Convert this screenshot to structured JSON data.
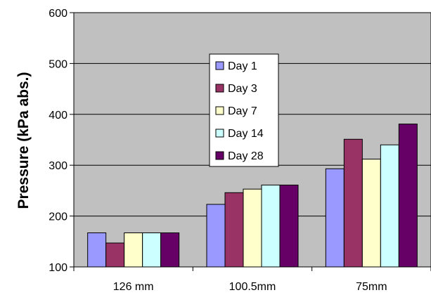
{
  "chart_data": {
    "type": "bar",
    "title": "",
    "xlabel": "",
    "ylabel": "Pressure (kPa abs.)",
    "ylim": [
      100,
      600
    ],
    "yticks": [
      100,
      200,
      300,
      400,
      500,
      600
    ],
    "grid": true,
    "legend_position": "center",
    "plot_background": "#c0c0c0",
    "categories": [
      "126 mm",
      "100.5mm",
      "75mm"
    ],
    "series": [
      {
        "name": "Day 1",
        "color": "#9999ff",
        "values": [
          167,
          223,
          293
        ]
      },
      {
        "name": "Day 3",
        "color": "#993366",
        "values": [
          147,
          246,
          351
        ]
      },
      {
        "name": "Day 7",
        "color": "#ffffcc",
        "values": [
          167,
          253,
          312
        ]
      },
      {
        "name": "Day 14",
        "color": "#ccffff",
        "values": [
          167,
          261,
          340
        ]
      },
      {
        "name": "Day 28",
        "color": "#660066",
        "values": [
          167,
          261,
          381
        ]
      }
    ]
  }
}
